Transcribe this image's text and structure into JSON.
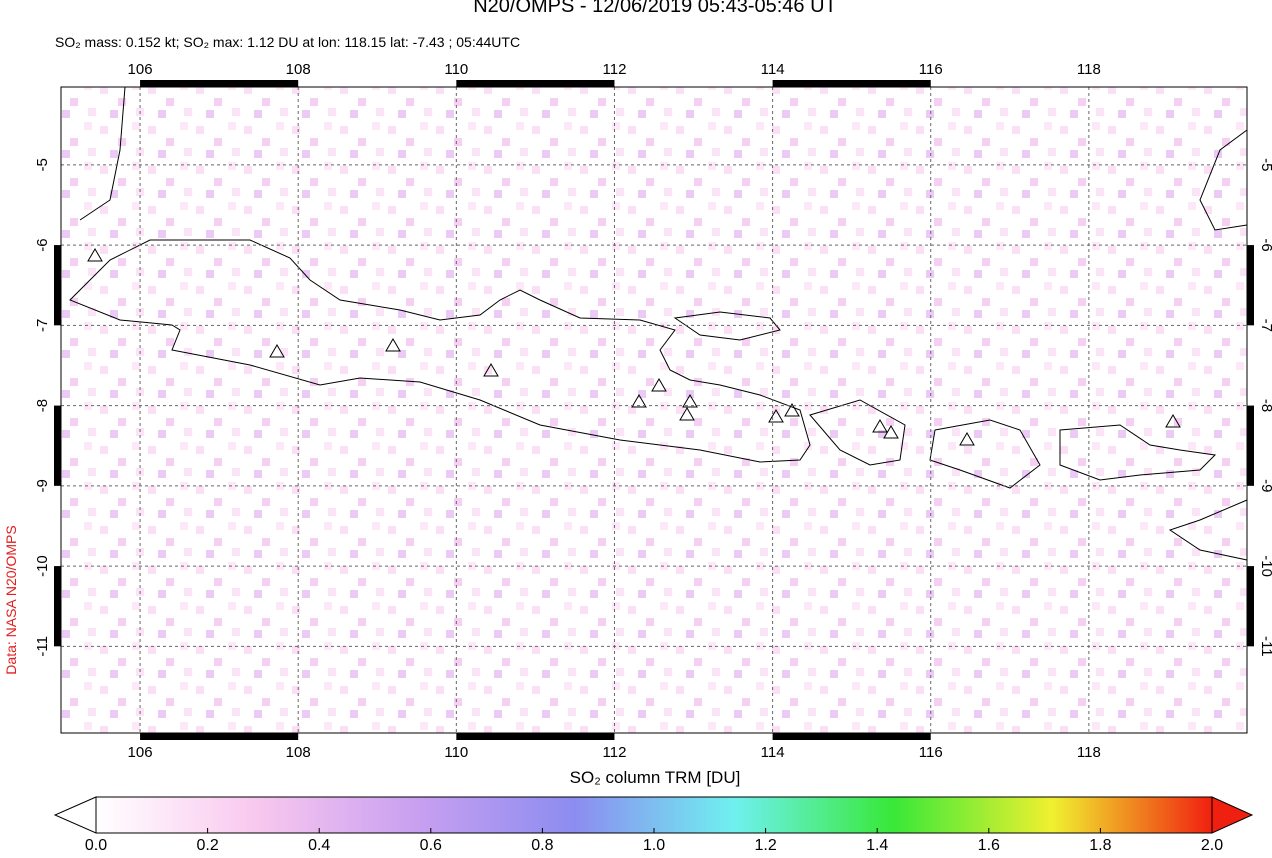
{
  "title": "N20/OMPS - 12/06/2019 05:43-05:46 UT",
  "subtitle": "SO₂ mass: 0.152 kt; SO₂ max: 1.12 DU at lon: 118.15 lat: -7.43 ; 05:44UTC",
  "credit": "Data: NASA N20/OMPS",
  "map": {
    "xlim": [
      105,
      120
    ],
    "ylim": [
      -12.08,
      -4.03
    ],
    "xticks": [
      106,
      108,
      110,
      112,
      114,
      116,
      118
    ],
    "yticks": [
      -5,
      -6,
      -7,
      -8,
      -9,
      -10,
      -11
    ]
  },
  "colorbar": {
    "label": "SO₂ column TRM [DU]",
    "lim": [
      0,
      2
    ],
    "ticks": [
      {
        "value": 0,
        "label": "0.0"
      },
      {
        "value": 0.2,
        "label": "0.2"
      },
      {
        "value": 0.4,
        "label": "0.4"
      },
      {
        "value": 0.6,
        "label": "0.6"
      },
      {
        "value": 0.8,
        "label": "0.8"
      },
      {
        "value": 1,
        "label": "1.0"
      },
      {
        "value": 1.2,
        "label": "1.2"
      },
      {
        "value": 1.4,
        "label": "1.4"
      },
      {
        "value": 1.6,
        "label": "1.6"
      },
      {
        "value": 1.8,
        "label": "1.8"
      },
      {
        "value": 2,
        "label": "2.0"
      }
    ],
    "colors": [
      "#ffffff",
      "#f9c8ef",
      "#c9a0f0",
      "#8c8cf0",
      "#6ff0f0",
      "#38e838",
      "#f0f030",
      "#f02010"
    ]
  }
}
